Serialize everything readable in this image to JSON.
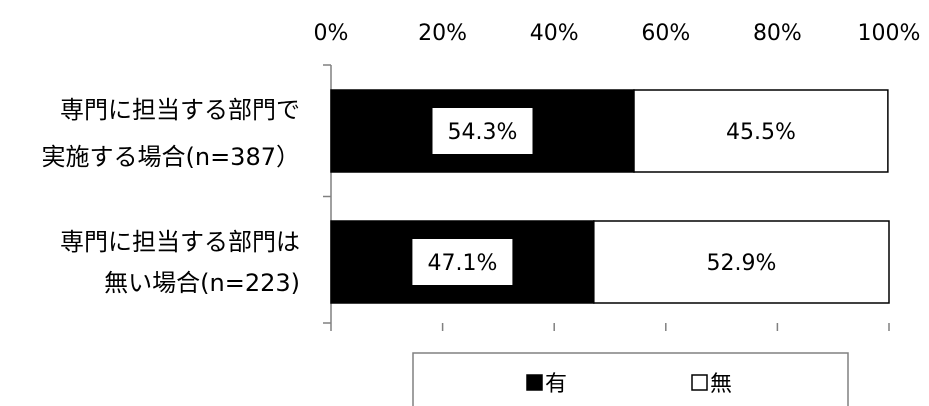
{
  "chart_data": {
    "type": "bar",
    "orientation": "horizontal",
    "stacked": true,
    "categories": [
      [
        "専門に担当する部門で",
        "実施する場合(n=387）"
      ],
      [
        "専門に担当する部門は",
        "無い場合(n=223)"
      ]
    ],
    "series": [
      {
        "name": "有",
        "values": [
          54.3,
          47.1
        ],
        "labels": [
          "54.3%",
          "47.1%"
        ],
        "color": "#000000"
      },
      {
        "name": "無",
        "values": [
          45.5,
          52.9
        ],
        "labels": [
          "45.5%",
          "52.9%"
        ],
        "color": "#ffffff"
      }
    ],
    "x_ticks": [
      "0%",
      "20%",
      "40%",
      "60%",
      "80%",
      "100%"
    ],
    "xlim": [
      0,
      100
    ],
    "x_axis_position": "top",
    "grid": false,
    "legend": {
      "position": "bottom",
      "items": [
        "有",
        "無"
      ]
    }
  }
}
